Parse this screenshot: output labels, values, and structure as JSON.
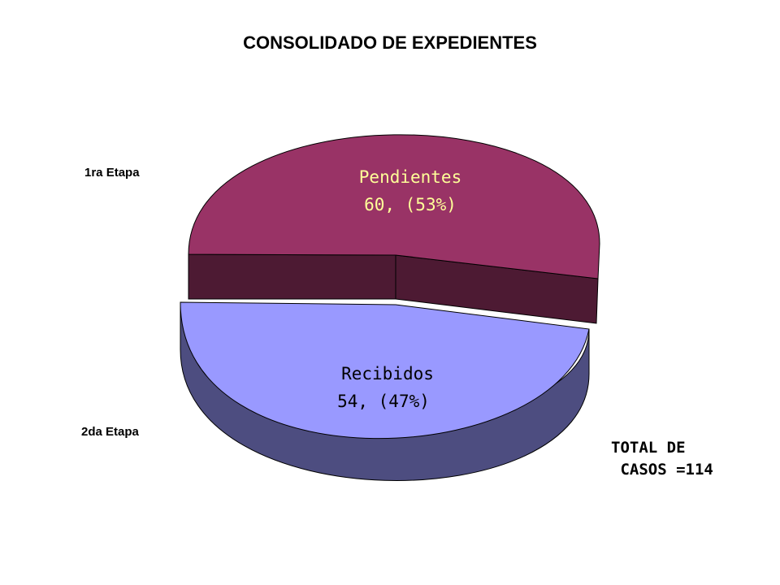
{
  "chart_data": {
    "type": "pie",
    "title": "CONSOLIDADO DE EXPEDIENTES",
    "slices": [
      {
        "name": "Pendientes",
        "value": 60,
        "percent_label": "(53%)",
        "color": "#993366",
        "side_color": "#4d1a33",
        "text_color": "#ffff99",
        "stage": "1ra Etapa"
      },
      {
        "name": "Recibidos",
        "value": 54,
        "percent_label": "(47%)",
        "color": "#9999ff",
        "side_color": "#4d4d80",
        "text_color": "#000000",
        "stage": "2da Etapa"
      }
    ],
    "stage_labels": [
      "1ra Etapa",
      "2da Etapa"
    ],
    "total_note": [
      "TOTAL DE",
      " CASOS =114"
    ]
  }
}
